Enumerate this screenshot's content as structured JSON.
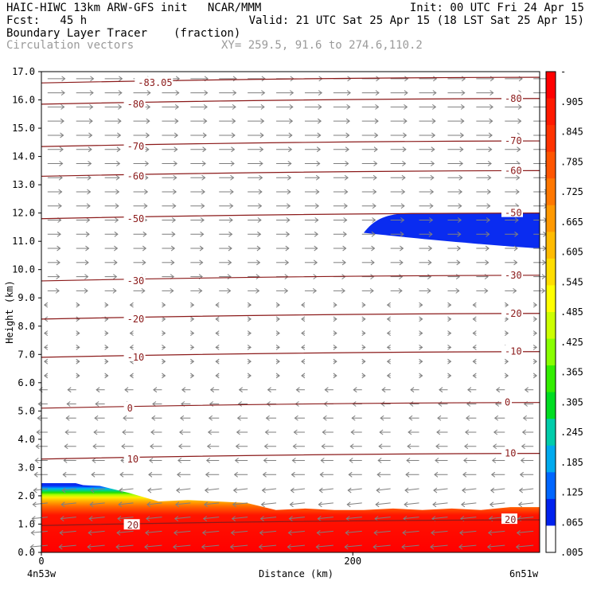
{
  "header": {
    "line1_left": "HAIC-HIWC 13km ARW-GFS init   NCAR/MMM",
    "line1_right": "Init: 00 UTC Fri 24 Apr 15",
    "line2_left": "Fcst:   45 h",
    "line2_right": "Valid: 21 UTC Sat 25 Apr 15 (18 LST Sat 25 Apr 15)",
    "line3_left": "Boundary Layer Tracer",
    "line3_mid": "(fraction)",
    "line4_left": "Circulation vectors",
    "line4_mid": "XY= 259.5, 91.6 to 274.6,110.2"
  },
  "colors": {
    "contour": "#8b1a1a",
    "vector": "#7f7f7f"
  },
  "chart_data": {
    "type": "heatmap",
    "ylabel": "Height (km)",
    "xlabel": "Distance (km)",
    "ylim": [
      0,
      17
    ],
    "xlim": [
      0,
      320
    ],
    "yticks": [
      "0.0",
      "1.0",
      "2.0",
      "3.0",
      "4.0",
      "5.0",
      "6.0",
      "7.0",
      "8.0",
      "9.0",
      "10.0",
      "11.0",
      "12.0",
      "13.0",
      "14.0",
      "15.0",
      "16.0",
      "17.0"
    ],
    "xticks": [
      {
        "value": 0,
        "label": "0"
      },
      {
        "value": 200,
        "label": "200"
      }
    ],
    "x_end_labels": {
      "left": "4n53w",
      "right": "6n51w"
    },
    "colorbar": {
      "labels": [
        "-",
        ".905",
        ".845",
        ".785",
        ".725",
        ".665",
        ".605",
        ".545",
        ".485",
        ".425",
        ".365",
        ".305",
        ".245",
        ".185",
        ".125",
        ".065",
        ".005"
      ],
      "colors": [
        "#ff0000",
        "#ff1a00",
        "#ff3300",
        "#ff5500",
        "#ff7700",
        "#ff9900",
        "#ffbb00",
        "#ffdd00",
        "#ffff00",
        "#ccff00",
        "#88ff00",
        "#33ee00",
        "#00dd22",
        "#00ccaa",
        "#00aaee",
        "#0066ff",
        "#0022ee",
        "#ffffff"
      ]
    },
    "tracer": {
      "base_top_km": [
        2.4,
        2.4,
        2.35,
        2.1,
        1.8,
        1.85,
        1.8,
        1.75,
        1.5,
        1.55,
        1.5,
        1.5,
        1.55,
        1.5,
        1.55,
        1.5,
        1.6,
        1.6
      ],
      "upper_blob": {
        "x_start_km": 207,
        "top_km": 12.0,
        "bottom_km_left": 11.25,
        "bottom_km_right": 10.75
      }
    },
    "isotherms": [
      {
        "label": "-83.05",
        "level": 16.6,
        "x_km": 62
      },
      {
        "label": "-80",
        "level": 15.85
      },
      {
        "label": "-70",
        "level": 14.35
      },
      {
        "label": "-60",
        "level": 13.3
      },
      {
        "label": "-50",
        "level": 11.8
      },
      {
        "label": "-30",
        "level": 9.6
      },
      {
        "label": "-20",
        "level": 8.25
      },
      {
        "label": "-10",
        "level": 6.9
      },
      {
        "label": "0",
        "level": 5.1
      },
      {
        "label": "10",
        "level": 3.3
      },
      {
        "label": "20",
        "level": 0.95
      }
    ]
  }
}
